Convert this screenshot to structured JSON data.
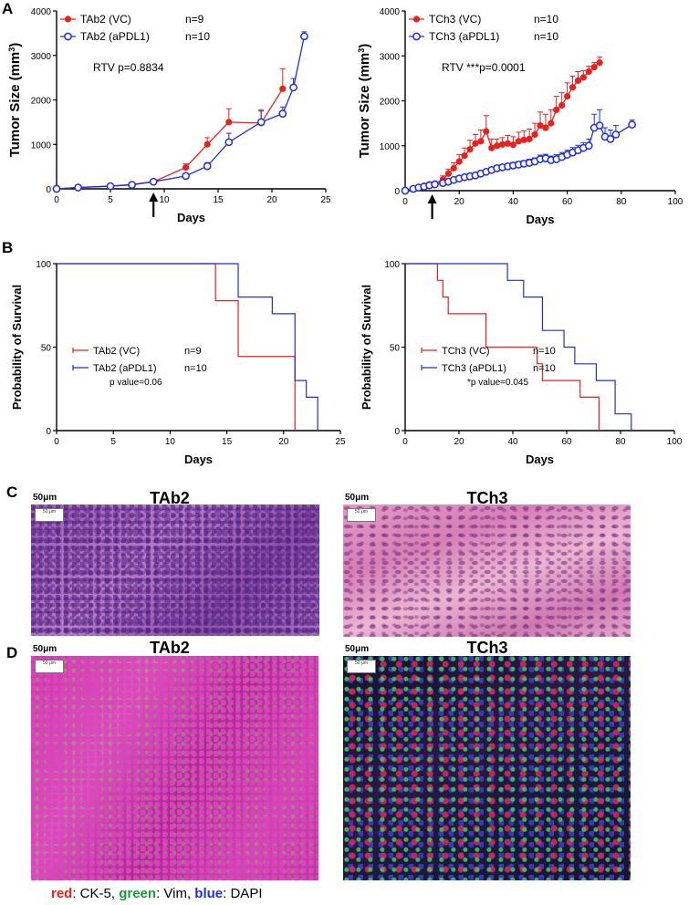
{
  "panels": {
    "A": "A",
    "B": "B",
    "C": "C",
    "D": "D"
  },
  "chart_data": [
    {
      "type": "line",
      "title": "",
      "xlabel": "Days",
      "ylabel": "Tumor Size (mm³)",
      "xlim": [
        0,
        25
      ],
      "ylim": [
        0,
        4000
      ],
      "xticks": [
        0,
        5,
        10,
        15,
        20,
        25
      ],
      "yticks": [
        0,
        1000,
        2000,
        3000,
        4000
      ],
      "arrow_day": 9,
      "annotation": "RTV p=0.8834",
      "series": [
        {
          "name": "TAb2 (VC)",
          "n": "n=9",
          "color": "#e8211d",
          "marker": "filled",
          "x": [
            0,
            2,
            5,
            7,
            9,
            12,
            14,
            16,
            19,
            21
          ],
          "y": [
            0,
            30,
            60,
            100,
            160,
            480,
            1000,
            1500,
            1480,
            2250
          ],
          "err": [
            10,
            15,
            20,
            25,
            30,
            80,
            150,
            300,
            300,
            450
          ]
        },
        {
          "name": "TAb2 (aPDL1)",
          "n": "n=10",
          "color": "#1f2ed8",
          "marker": "open",
          "x": [
            0,
            2,
            5,
            7,
            9,
            12,
            14,
            16,
            19,
            21,
            22,
            23
          ],
          "y": [
            0,
            30,
            60,
            90,
            160,
            290,
            510,
            1050,
            1500,
            1690,
            2280,
            3430
          ],
          "err": [
            10,
            15,
            20,
            25,
            30,
            50,
            80,
            200,
            250,
            150,
            200,
            100
          ]
        }
      ]
    },
    {
      "type": "line",
      "title": "",
      "xlabel": "Days",
      "ylabel": "Tumor Size (mm³)",
      "xlim": [
        0,
        100
      ],
      "ylim": [
        0,
        4000
      ],
      "xticks": [
        0,
        20,
        40,
        60,
        80,
        100
      ],
      "yticks": [
        0,
        1000,
        2000,
        3000,
        4000
      ],
      "arrow_day": 10,
      "annotation": "RTV ***p=0.0001",
      "series": [
        {
          "name": "TCh3 (VC)",
          "n": "n=10",
          "color": "#e8211d",
          "marker": "filled",
          "x": [
            0,
            3,
            5,
            7,
            9,
            11,
            14,
            16,
            18,
            20,
            22,
            24,
            26,
            28,
            30,
            32,
            34,
            36,
            38,
            40,
            42,
            44,
            46,
            48,
            50,
            52,
            54,
            56,
            58,
            60,
            62,
            64,
            66,
            68,
            70,
            72
          ],
          "y": [
            0,
            40,
            80,
            110,
            140,
            160,
            250,
            380,
            500,
            650,
            780,
            920,
            1050,
            1100,
            1320,
            950,
            1000,
            1030,
            1050,
            1020,
            1100,
            1130,
            1150,
            1250,
            1450,
            1400,
            1500,
            1800,
            1900,
            2100,
            2300,
            2450,
            2520,
            2650,
            2750,
            2850
          ],
          "err": [
            10,
            20,
            30,
            30,
            40,
            40,
            80,
            100,
            120,
            150,
            170,
            200,
            200,
            250,
            350,
            200,
            150,
            150,
            180,
            180,
            200,
            200,
            220,
            250,
            300,
            300,
            300,
            300,
            280,
            300,
            250,
            200,
            150,
            120,
            100,
            120
          ]
        },
        {
          "name": "TCh3 (aPDL1)",
          "n": "n=10",
          "color": "#1f2ed8",
          "marker": "open",
          "x": [
            0,
            3,
            5,
            7,
            9,
            11,
            14,
            16,
            18,
            20,
            22,
            24,
            26,
            28,
            30,
            32,
            34,
            36,
            38,
            40,
            42,
            44,
            46,
            48,
            50,
            52,
            54,
            56,
            58,
            60,
            62,
            64,
            66,
            68,
            70,
            72,
            74,
            76,
            78,
            84
          ],
          "y": [
            0,
            40,
            70,
            90,
            120,
            140,
            170,
            200,
            240,
            270,
            300,
            320,
            340,
            380,
            420,
            460,
            500,
            520,
            540,
            560,
            580,
            600,
            620,
            650,
            700,
            720,
            680,
            700,
            750,
            800,
            850,
            900,
            950,
            1000,
            1400,
            1450,
            1200,
            1150,
            1250,
            1470
          ],
          "err": [
            10,
            15,
            20,
            20,
            25,
            25,
            30,
            30,
            40,
            40,
            40,
            40,
            50,
            50,
            50,
            60,
            60,
            60,
            60,
            70,
            70,
            70,
            80,
            80,
            90,
            90,
            90,
            100,
            100,
            100,
            110,
            110,
            120,
            150,
            300,
            350,
            200,
            200,
            200,
            100
          ]
        }
      ]
    },
    {
      "type": "line",
      "subtype": "kaplan-meier",
      "xlabel": "Days",
      "ylabel": "Probability of Survival",
      "xlim": [
        0,
        25
      ],
      "ylim": [
        0,
        100
      ],
      "xticks": [
        0,
        5,
        10,
        15,
        20,
        25
      ],
      "yticks": [
        0,
        50,
        100
      ],
      "annotation": "p value=0.06",
      "series": [
        {
          "name": "TAb2 (VC)",
          "n": "n=9",
          "color": "#e8211d",
          "x": [
            0,
            14,
            14,
            16,
            16,
            21,
            21
          ],
          "y": [
            100,
            100,
            77.8,
            77.8,
            44.4,
            44.4,
            0
          ]
        },
        {
          "name": "TAb2 (aPDL1)",
          "n": "n=10",
          "color": "#1f2ed8",
          "x": [
            0,
            16,
            16,
            19,
            19,
            21,
            21,
            22,
            22,
            23,
            23
          ],
          "y": [
            100,
            100,
            80,
            80,
            70,
            70,
            30,
            30,
            20,
            20,
            0
          ]
        }
      ]
    },
    {
      "type": "line",
      "subtype": "kaplan-meier",
      "xlabel": "Days",
      "ylabel": "Probability of Survival",
      "xlim": [
        0,
        100
      ],
      "ylim": [
        0,
        100
      ],
      "xticks": [
        0,
        20,
        40,
        60,
        80,
        100
      ],
      "yticks": [
        0,
        50,
        100
      ],
      "annotation": "*p value=0.045",
      "series": [
        {
          "name": "TCh3 (VC)",
          "n": "n=10",
          "color": "#e8211d",
          "x": [
            0,
            12,
            12,
            14,
            14,
            16,
            16,
            30,
            30,
            49,
            49,
            51,
            51,
            65,
            65,
            72,
            72
          ],
          "y": [
            100,
            100,
            90,
            90,
            80,
            80,
            70,
            70,
            50,
            50,
            40,
            40,
            30,
            30,
            20,
            20,
            0
          ]
        },
        {
          "name": "TCh3 (aPDL1)",
          "n": "n=10",
          "color": "#1f2ed8",
          "x": [
            0,
            38,
            38,
            44,
            44,
            51,
            51,
            59,
            59,
            63,
            63,
            71,
            71,
            78,
            78,
            84,
            84
          ],
          "y": [
            100,
            100,
            90,
            90,
            80,
            80,
            60,
            60,
            50,
            50,
            40,
            40,
            30,
            30,
            10,
            10,
            0
          ]
        }
      ]
    }
  ],
  "images": {
    "he_tab2": {
      "title": "TAb2",
      "scale": "50μm",
      "box": "50 μm"
    },
    "he_tch3": {
      "title": "TCh3",
      "scale": "50μm",
      "box": "50 μm"
    },
    "if_tab2": {
      "title": "TAb2",
      "scale": "50μm",
      "box": "50 μm"
    },
    "if_tch3": {
      "title": "TCh3",
      "scale": "50μm",
      "box": "50 μm"
    }
  },
  "stain_legend": {
    "red_word": "red",
    "red_rest": ": CK-5, ",
    "green_word": "green",
    "green_rest": ": Vim, ",
    "blue_word": "blue",
    "blue_rest": ": DAPI",
    "red_color": "#e8211d",
    "green_color": "#1c9a3a",
    "blue_color": "#1f2ed8"
  }
}
